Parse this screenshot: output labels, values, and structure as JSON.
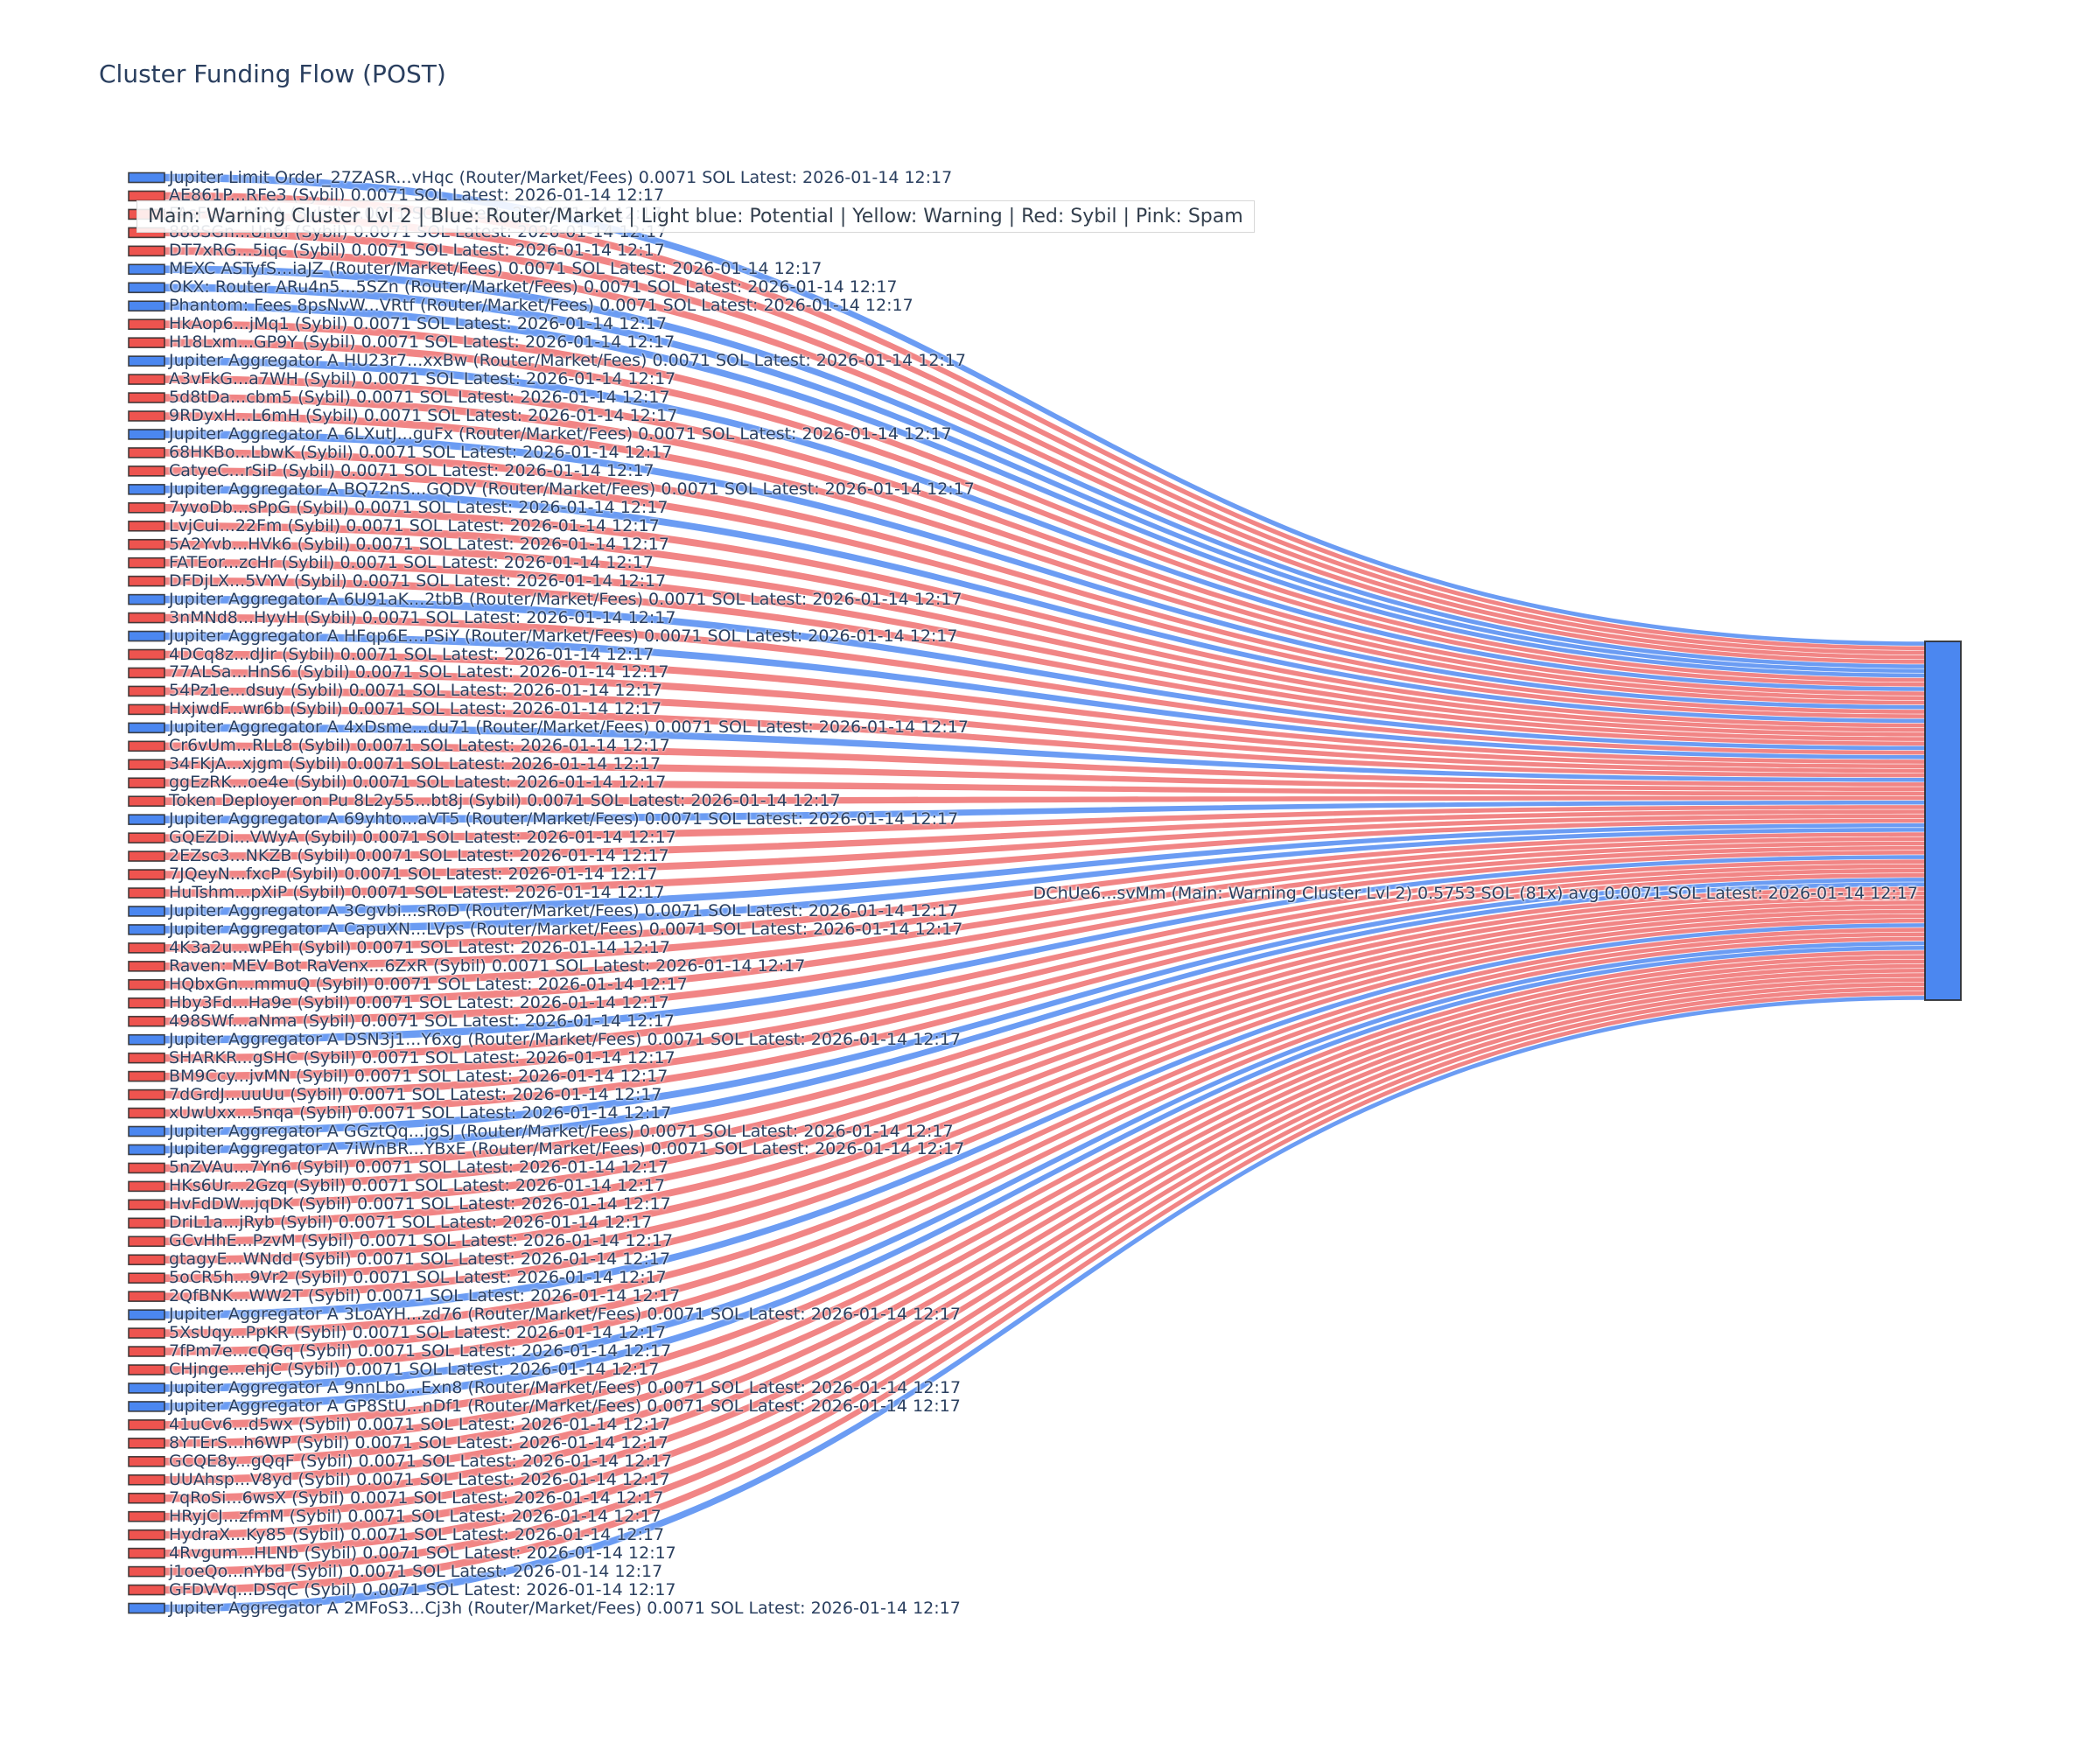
{
  "title": "Cluster Funding Flow (POST)",
  "legend_text": "Main: Warning Cluster Lvl 2  | Blue: Router/Market | Light blue: Potential | Yellow: Warning | Red: Sybil | Pink: Spam",
  "colors": {
    "text": "#2a3f5f",
    "router_node": "#4b87f0",
    "router_flow": "rgba(75,134,240,0.82)",
    "sybil_node": "#ee544f",
    "sybil_flow": "rgba(236,86,86,0.72)",
    "target_node": "#4b87f0",
    "node_border": "rgba(40,40,40,0.85)"
  },
  "chart_data": {
    "type": "sankey",
    "title": "Cluster Funding Flow (POST)",
    "flow_amount": "0.0071 SOL",
    "latest_label": "Latest: 2026-01-14 12:17",
    "target": {
      "name": "DChUe6...svMm",
      "category": "Main: Warning Cluster Lvl 2",
      "total": "0.5753 SOL",
      "tx_count": "81x",
      "avg": "0.0071 SOL",
      "label": "DChUe6...svMm (Main: Warning Cluster Lvl 2) 0.5753 SOL (81x) avg 0.0071 SOL Latest: 2026-01-14 12:17"
    },
    "sources": [
      {
        "name": "Jupiter Limit Order_27ZASR...vHqc",
        "category": "Router/Market/Fees",
        "type": "router"
      },
      {
        "name": "AE861P...RFe3",
        "category": "Sybil",
        "type": "sybil"
      },
      {
        "name": "FAsFUz...hSYA",
        "category": "Sybil",
        "type": "sybil"
      },
      {
        "name": "888SGn...Un6f",
        "category": "Sybil",
        "type": "sybil"
      },
      {
        "name": "DT7xRG...5iqc",
        "category": "Sybil",
        "type": "sybil"
      },
      {
        "name": "MEXC ASTyfS...iaJZ",
        "category": "Router/Market/Fees",
        "type": "router"
      },
      {
        "name": "OKX: Router ARu4n5...5SZn",
        "category": "Router/Market/Fees",
        "type": "router"
      },
      {
        "name": "Phantom: Fees 8psNvW...VRtf",
        "category": "Router/Market/Fees",
        "type": "router"
      },
      {
        "name": "HkAop6...jMq1",
        "category": "Sybil",
        "type": "sybil"
      },
      {
        "name": "H18Lxm...GP9Y",
        "category": "Sybil",
        "type": "sybil"
      },
      {
        "name": "Jupiter Aggregator A HU23r7...xxBw",
        "category": "Router/Market/Fees",
        "type": "router"
      },
      {
        "name": "A3vFkG...a7WH",
        "category": "Sybil",
        "type": "sybil"
      },
      {
        "name": "5d8tDa...cbm5",
        "category": "Sybil",
        "type": "sybil"
      },
      {
        "name": "9RDyxH...L6mH",
        "category": "Sybil",
        "type": "sybil"
      },
      {
        "name": "Jupiter Aggregator A 6LXutJ...guFx",
        "category": "Router/Market/Fees",
        "type": "router"
      },
      {
        "name": "68HKBo...LbwK",
        "category": "Sybil",
        "type": "sybil"
      },
      {
        "name": "CatyeC...rSiP",
        "category": "Sybil",
        "type": "sybil"
      },
      {
        "name": "Jupiter Aggregator A BQ72nS...GQDV",
        "category": "Router/Market/Fees",
        "type": "router"
      },
      {
        "name": "7yvoDb...sPpG",
        "category": "Sybil",
        "type": "sybil"
      },
      {
        "name": "LvjCui...22Fm",
        "category": "Sybil",
        "type": "sybil"
      },
      {
        "name": "5A2Yvb...HVk6",
        "category": "Sybil",
        "type": "sybil"
      },
      {
        "name": "FATEor...zcHr",
        "category": "Sybil",
        "type": "sybil"
      },
      {
        "name": "DFDjLX...5VYV",
        "category": "Sybil",
        "type": "sybil"
      },
      {
        "name": "Jupiter Aggregator A 6U91aK...2tbB",
        "category": "Router/Market/Fees",
        "type": "router"
      },
      {
        "name": "3nMNd8...HyyH",
        "category": "Sybil",
        "type": "sybil"
      },
      {
        "name": "Jupiter Aggregator A HFqp6E...PSiY",
        "category": "Router/Market/Fees",
        "type": "router"
      },
      {
        "name": "4DCq8z...dJir",
        "category": "Sybil",
        "type": "sybil"
      },
      {
        "name": "77ALSa...HnS6",
        "category": "Sybil",
        "type": "sybil"
      },
      {
        "name": "54Pz1e...dsuy",
        "category": "Sybil",
        "type": "sybil"
      },
      {
        "name": "HxjwdF...wr6b",
        "category": "Sybil",
        "type": "sybil"
      },
      {
        "name": "Jupiter Aggregator A 4xDsme...du71",
        "category": "Router/Market/Fees",
        "type": "router"
      },
      {
        "name": "Cr6vUm...RLL8",
        "category": "Sybil",
        "type": "sybil"
      },
      {
        "name": "34FKjA...xjgm",
        "category": "Sybil",
        "type": "sybil"
      },
      {
        "name": "ggEzRK...oe4e",
        "category": "Sybil",
        "type": "sybil"
      },
      {
        "name": "Token Deployer on Pu 8L2y55...bt8j",
        "category": "Sybil",
        "type": "sybil"
      },
      {
        "name": "Jupiter Aggregator A 69yhto...aVT5",
        "category": "Router/Market/Fees",
        "type": "router"
      },
      {
        "name": "GQEZDi...VWyA",
        "category": "Sybil",
        "type": "sybil"
      },
      {
        "name": "2EZsc3...NKZB",
        "category": "Sybil",
        "type": "sybil"
      },
      {
        "name": "7JQeyN...fxcP",
        "category": "Sybil",
        "type": "sybil"
      },
      {
        "name": "HuTshm...pXiP",
        "category": "Sybil",
        "type": "sybil"
      },
      {
        "name": "Jupiter Aggregator A 3Cgvbi...sRoD",
        "category": "Router/Market/Fees",
        "type": "router"
      },
      {
        "name": "Jupiter Aggregator A CapuXN...LVps",
        "category": "Router/Market/Fees",
        "type": "router"
      },
      {
        "name": "4K3a2u...wPEh",
        "category": "Sybil",
        "type": "sybil"
      },
      {
        "name": "Raven: MEV Bot RaVenx...6ZxR",
        "category": "Sybil",
        "type": "sybil"
      },
      {
        "name": "HQbxGn...mmuQ",
        "category": "Sybil",
        "type": "sybil"
      },
      {
        "name": "Hby3Fd...Ha9e",
        "category": "Sybil",
        "type": "sybil"
      },
      {
        "name": "498SWf...aNma",
        "category": "Sybil",
        "type": "sybil"
      },
      {
        "name": "Jupiter Aggregator A DSN3j1...Y6xg",
        "category": "Router/Market/Fees",
        "type": "router"
      },
      {
        "name": "SHARKR...gSHC",
        "category": "Sybil",
        "type": "sybil"
      },
      {
        "name": "BM9Ccy...jvMN",
        "category": "Sybil",
        "type": "sybil"
      },
      {
        "name": "7dGrdJ...uuUu",
        "category": "Sybil",
        "type": "sybil"
      },
      {
        "name": "xUwUxx...5nqa",
        "category": "Sybil",
        "type": "sybil"
      },
      {
        "name": "Jupiter Aggregator A GGztQq...jgSJ",
        "category": "Router/Market/Fees",
        "type": "router"
      },
      {
        "name": "Jupiter Aggregator A 7iWnBR...YBxE",
        "category": "Router/Market/Fees",
        "type": "router"
      },
      {
        "name": "5nZVAu...7Yn6",
        "category": "Sybil",
        "type": "sybil"
      },
      {
        "name": "HKs6Ur...2Gzq",
        "category": "Sybil",
        "type": "sybil"
      },
      {
        "name": "HvFdDW...jqDK",
        "category": "Sybil",
        "type": "sybil"
      },
      {
        "name": "DriL1a...jRyb",
        "category": "Sybil",
        "type": "sybil"
      },
      {
        "name": "GCvHhE...PzvM",
        "category": "Sybil",
        "type": "sybil"
      },
      {
        "name": "gtagyE...WNdd",
        "category": "Sybil",
        "type": "sybil"
      },
      {
        "name": "5oCR5h...9Vr2",
        "category": "Sybil",
        "type": "sybil"
      },
      {
        "name": "2QfBNK...WW2T",
        "category": "Sybil",
        "type": "sybil"
      },
      {
        "name": "Jupiter Aggregator A 3LoAYH...zd76",
        "category": "Router/Market/Fees",
        "type": "router"
      },
      {
        "name": "5XsUqy...PpKR",
        "category": "Sybil",
        "type": "sybil"
      },
      {
        "name": "7fPm7e...cQGq",
        "category": "Sybil",
        "type": "sybil"
      },
      {
        "name": "CHjnge...ehjC",
        "category": "Sybil",
        "type": "sybil"
      },
      {
        "name": "Jupiter Aggregator A 9nnLbo...Exn8",
        "category": "Router/Market/Fees",
        "type": "router"
      },
      {
        "name": "Jupiter Aggregator A GP8StU...nDf1",
        "category": "Router/Market/Fees",
        "type": "router"
      },
      {
        "name": "41uCv6...d5wx",
        "category": "Sybil",
        "type": "sybil"
      },
      {
        "name": "8YTErS...h6WP",
        "category": "Sybil",
        "type": "sybil"
      },
      {
        "name": "GCQE8y...gQqF",
        "category": "Sybil",
        "type": "sybil"
      },
      {
        "name": "UUAhsp...V8yd",
        "category": "Sybil",
        "type": "sybil"
      },
      {
        "name": "7qRoSi...6wsX",
        "category": "Sybil",
        "type": "sybil"
      },
      {
        "name": "HRyjCJ...zfmM",
        "category": "Sybil",
        "type": "sybil"
      },
      {
        "name": "HydraX...Ky85",
        "category": "Sybil",
        "type": "sybil"
      },
      {
        "name": "4Rvgum...HLNb",
        "category": "Sybil",
        "type": "sybil"
      },
      {
        "name": "j1oeQo...nYbd",
        "category": "Sybil",
        "type": "sybil"
      },
      {
        "name": "GFDVVq...DSqC",
        "category": "Sybil",
        "type": "sybil"
      },
      {
        "name": "Jupiter Aggregator A 2MFoS3...Cj3h",
        "category": "Router/Market/Fees",
        "type": "router"
      }
    ]
  }
}
